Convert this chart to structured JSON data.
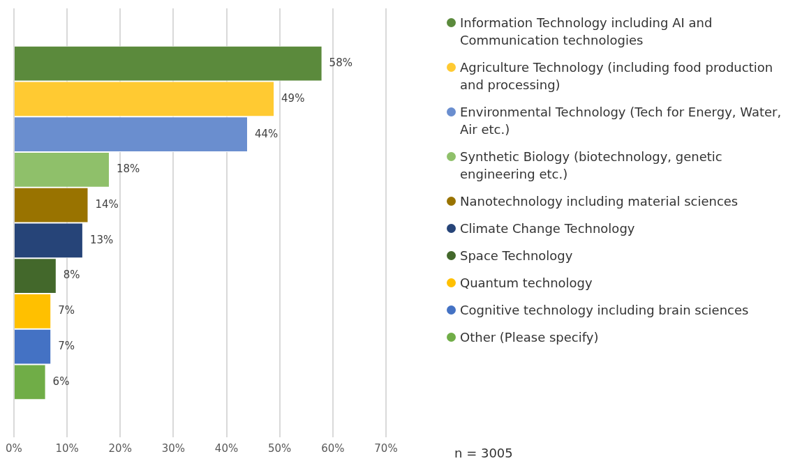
{
  "chart_data": {
    "type": "bar",
    "orientation": "horizontal",
    "categories": [
      null
    ],
    "series": [
      {
        "name": "Information Technology including AI and Communication technologies",
        "color": "#5b8a3c",
        "values": [
          58
        ],
        "value_labels": [
          "58%"
        ]
      },
      {
        "name": "Agriculture Technology (including food production and processing)",
        "color": "#ffca32",
        "values": [
          49
        ],
        "value_labels": [
          "49%"
        ]
      },
      {
        "name": "Environmental Technology (Tech for Energy, Water, Air etc.)",
        "color": "#6a8ecf",
        "values": [
          44
        ],
        "value_labels": [
          "44%"
        ]
      },
      {
        "name": "Synthetic Biology (biotechnology, genetic engineering etc.)",
        "color": "#8fc06a",
        "values": [
          18
        ],
        "value_labels": [
          "18%"
        ]
      },
      {
        "name": "Nanotechnology including material sciences",
        "color": "#997300",
        "values": [
          14
        ],
        "value_labels": [
          "14%"
        ]
      },
      {
        "name": "Climate Change Technology",
        "color": "#264478",
        "values": [
          13
        ],
        "value_labels": [
          "13%"
        ]
      },
      {
        "name": "Space Technology",
        "color": "#43682b",
        "values": [
          8
        ],
        "value_labels": [
          "8%"
        ]
      },
      {
        "name": "Quantum technology",
        "color": "#ffc000",
        "values": [
          7
        ],
        "value_labels": [
          "7%"
        ]
      },
      {
        "name": "Cognitive technology including brain sciences",
        "color": "#4472c4",
        "values": [
          7
        ],
        "value_labels": [
          "7%"
        ]
      },
      {
        "name": "Other (Please specify)",
        "color": "#70ad47",
        "values": [
          6
        ],
        "value_labels": [
          "6%"
        ]
      }
    ],
    "xlim": [
      0,
      70
    ],
    "xticks": [
      {
        "value": 0,
        "label": "0%"
      },
      {
        "value": 10,
        "label": "10%"
      },
      {
        "value": 20,
        "label": "20%"
      },
      {
        "value": 30,
        "label": "30%"
      },
      {
        "value": 40,
        "label": "40%"
      },
      {
        "value": 50,
        "label": "50%"
      },
      {
        "value": 60,
        "label": "60%"
      },
      {
        "value": 70,
        "label": "70%"
      }
    ],
    "grid": "x",
    "legend": "right",
    "annotations": [
      "n = 3005"
    ]
  }
}
